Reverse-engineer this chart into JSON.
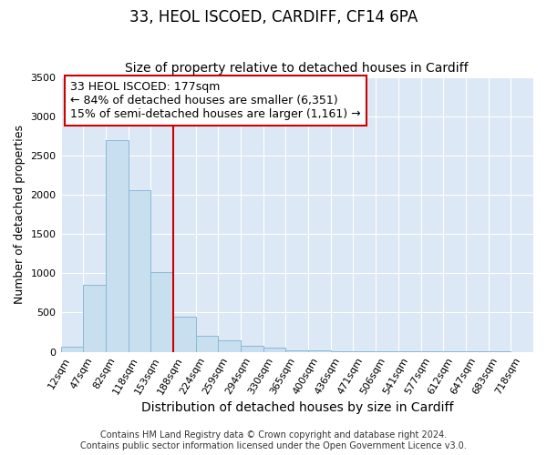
{
  "title": "33, HEOL ISCOED, CARDIFF, CF14 6PA",
  "subtitle": "Size of property relative to detached houses in Cardiff",
  "xlabel": "Distribution of detached houses by size in Cardiff",
  "ylabel": "Number of detached properties",
  "categories": [
    "12sqm",
    "47sqm",
    "82sqm",
    "118sqm",
    "153sqm",
    "188sqm",
    "224sqm",
    "259sqm",
    "294sqm",
    "330sqm",
    "365sqm",
    "400sqm",
    "436sqm",
    "471sqm",
    "506sqm",
    "541sqm",
    "577sqm",
    "612sqm",
    "647sqm",
    "683sqm",
    "718sqm"
  ],
  "values": [
    60,
    850,
    2700,
    2060,
    1010,
    450,
    200,
    145,
    70,
    50,
    20,
    15,
    10,
    8,
    5,
    3,
    2,
    1,
    1,
    1,
    0
  ],
  "bar_color": "#c8dff0",
  "bar_edge_color": "#8ab8d8",
  "vline_color": "#cc0000",
  "vline_pos": 4.5,
  "annotation_text": "33 HEOL ISCOED: 177sqm\n← 84% of detached houses are smaller (6,351)\n15% of semi-detached houses are larger (1,161) →",
  "annotation_box_facecolor": "#ffffff",
  "annotation_box_edgecolor": "#cc0000",
  "ylim": [
    0,
    3500
  ],
  "yticks": [
    0,
    500,
    1000,
    1500,
    2000,
    2500,
    3000,
    3500
  ],
  "plot_bg_color": "#dce8f5",
  "fig_bg_color": "#ffffff",
  "grid_color": "#ffffff",
  "title_fontsize": 12,
  "subtitle_fontsize": 10,
  "xlabel_fontsize": 10,
  "ylabel_fontsize": 9,
  "tick_fontsize": 8,
  "annotation_fontsize": 9,
  "footer_fontsize": 7,
  "footer_text": "Contains HM Land Registry data © Crown copyright and database right 2024.\nContains public sector information licensed under the Open Government Licence v3.0."
}
